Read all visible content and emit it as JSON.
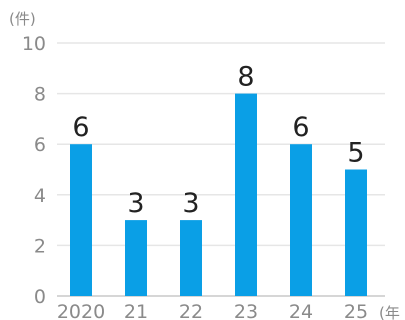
{
  "chart_data": {
    "type": "bar",
    "y_unit_label": "(件)",
    "x_unit_label": "(年",
    "categories": [
      "2020",
      "21",
      "22",
      "23",
      "24",
      "25"
    ],
    "values": [
      6,
      3,
      3,
      8,
      6,
      5
    ],
    "data_labels": [
      "6",
      "3",
      "3",
      "8",
      "6",
      "5"
    ],
    "ylim": [
      0,
      10
    ],
    "yticks": [
      0,
      2,
      4,
      6,
      8,
      10
    ],
    "ytick_labels": [
      "0",
      "2",
      "4",
      "6",
      "8",
      "10"
    ],
    "grid": true,
    "colors": {
      "bar": "#0a9fe6",
      "grid": "#e6e6e6",
      "axis": "#c8c8c8"
    }
  }
}
